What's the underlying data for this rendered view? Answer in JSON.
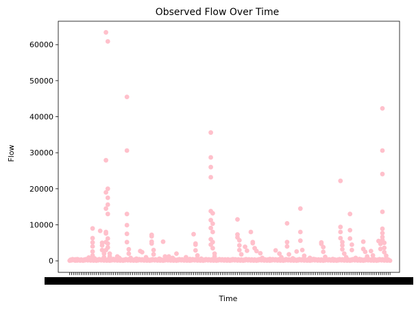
{
  "chart_data": {
    "type": "scatter",
    "title": "Observed Flow Over Time",
    "xlabel": "Time",
    "ylabel": "Flow",
    "ylim": [
      -3200,
      66500
    ],
    "yticks": [
      0,
      10000,
      20000,
      30000,
      40000,
      50000,
      60000
    ],
    "ytick_labels": [
      "0",
      "10000",
      "20000",
      "30000",
      "40000",
      "50000",
      "60000"
    ],
    "x_tick_labels_note": "",
    "grid": false,
    "legend": "none",
    "marker_color": "#ffc0cb",
    "points": [
      [
        0.5,
        150
      ],
      [
        1.5,
        300
      ],
      [
        3,
        90
      ],
      [
        4,
        450
      ],
      [
        6,
        200
      ],
      [
        8,
        350
      ],
      [
        10,
        900
      ],
      [
        12,
        9000
      ],
      [
        12,
        6300
      ],
      [
        12,
        5100
      ],
      [
        12,
        4000
      ],
      [
        12,
        2600
      ],
      [
        12,
        1500
      ],
      [
        13,
        700
      ],
      [
        16,
        8300
      ],
      [
        17,
        5000
      ],
      [
        17,
        4300
      ],
      [
        17,
        3000
      ],
      [
        18,
        2000
      ],
      [
        18,
        1000
      ],
      [
        19,
        63400
      ],
      [
        20,
        60900
      ],
      [
        19,
        27900
      ],
      [
        20,
        20000
      ],
      [
        19,
        19000
      ],
      [
        20,
        17500
      ],
      [
        20,
        15600
      ],
      [
        19,
        14500
      ],
      [
        20,
        13000
      ],
      [
        19,
        8000
      ],
      [
        19,
        7600
      ],
      [
        20,
        6200
      ],
      [
        19,
        5200
      ],
      [
        20,
        4800
      ],
      [
        20,
        3700
      ],
      [
        19,
        3000
      ],
      [
        21,
        2000
      ],
      [
        21,
        1200
      ],
      [
        23,
        500
      ],
      [
        25,
        1200
      ],
      [
        26,
        800
      ],
      [
        30,
        45500
      ],
      [
        30,
        30600
      ],
      [
        30,
        13000
      ],
      [
        30,
        9900
      ],
      [
        30,
        7500
      ],
      [
        30,
        5200
      ],
      [
        31,
        3200
      ],
      [
        31,
        2000
      ],
      [
        32,
        800
      ],
      [
        35,
        600
      ],
      [
        37,
        2700
      ],
      [
        38,
        2400
      ],
      [
        40,
        1000
      ],
      [
        43,
        7200
      ],
      [
        43,
        6800
      ],
      [
        43,
        5300
      ],
      [
        43,
        4800
      ],
      [
        44,
        3000
      ],
      [
        44,
        1800
      ],
      [
        47,
        600
      ],
      [
        49,
        5300
      ],
      [
        50,
        1200
      ],
      [
        52,
        1200
      ],
      [
        54,
        800
      ],
      [
        56,
        2000
      ],
      [
        58,
        300
      ],
      [
        61,
        1000
      ],
      [
        63,
        500
      ],
      [
        65,
        7400
      ],
      [
        66,
        4800
      ],
      [
        66,
        4500
      ],
      [
        66,
        2900
      ],
      [
        67,
        1500
      ],
      [
        69,
        600
      ],
      [
        74,
        35600
      ],
      [
        74,
        28700
      ],
      [
        74,
        26000
      ],
      [
        74,
        23200
      ],
      [
        74,
        13800
      ],
      [
        75,
        13200
      ],
      [
        74,
        11300
      ],
      [
        75,
        10300
      ],
      [
        74,
        9100
      ],
      [
        75,
        8000
      ],
      [
        74,
        6000
      ],
      [
        75,
        5200
      ],
      [
        74,
        4500
      ],
      [
        75,
        3500
      ],
      [
        76,
        2000
      ],
      [
        76,
        1200
      ],
      [
        80,
        300
      ],
      [
        83,
        400
      ],
      [
        86,
        400
      ],
      [
        88,
        11500
      ],
      [
        88,
        7300
      ],
      [
        88,
        6500
      ],
      [
        89,
        5700
      ],
      [
        89,
        4300
      ],
      [
        89,
        3000
      ],
      [
        90,
        1800
      ],
      [
        92,
        3900
      ],
      [
        93,
        2800
      ],
      [
        95,
        8000
      ],
      [
        96,
        5200
      ],
      [
        96,
        4900
      ],
      [
        97,
        3500
      ],
      [
        98,
        2700
      ],
      [
        100,
        2100
      ],
      [
        101,
        800
      ],
      [
        105,
        500
      ],
      [
        108,
        2900
      ],
      [
        110,
        2000
      ],
      [
        111,
        1000
      ],
      [
        114,
        10400
      ],
      [
        114,
        5200
      ],
      [
        114,
        4000
      ],
      [
        115,
        1800
      ],
      [
        117,
        700
      ],
      [
        119,
        2600
      ],
      [
        121,
        14500
      ],
      [
        121,
        8000
      ],
      [
        121,
        5600
      ],
      [
        122,
        3000
      ],
      [
        123,
        1400
      ],
      [
        126,
        800
      ],
      [
        128,
        500
      ],
      [
        132,
        5100
      ],
      [
        132,
        4700
      ],
      [
        133,
        3800
      ],
      [
        133,
        2500
      ],
      [
        134,
        1100
      ],
      [
        138,
        500
      ],
      [
        142,
        22200
      ],
      [
        142,
        9400
      ],
      [
        142,
        8000
      ],
      [
        142,
        6300
      ],
      [
        143,
        5200
      ],
      [
        143,
        4300
      ],
      [
        143,
        3200
      ],
      [
        144,
        2000
      ],
      [
        145,
        1000
      ],
      [
        147,
        13000
      ],
      [
        147,
        8500
      ],
      [
        147,
        6200
      ],
      [
        148,
        4500
      ],
      [
        148,
        3000
      ],
      [
        150,
        800
      ],
      [
        152,
        500
      ],
      [
        154,
        5300
      ],
      [
        154,
        3300
      ],
      [
        155,
        2500
      ],
      [
        156,
        1200
      ],
      [
        158,
        2700
      ],
      [
        159,
        1500
      ],
      [
        160,
        400
      ],
      [
        162,
        5500
      ],
      [
        163,
        4700
      ],
      [
        163,
        3300
      ],
      [
        164,
        42300
      ],
      [
        164,
        30600
      ],
      [
        164,
        24100
      ],
      [
        164,
        13600
      ],
      [
        164,
        8900
      ],
      [
        164,
        7700
      ],
      [
        164,
        6600
      ],
      [
        164,
        5800
      ],
      [
        165,
        5000
      ],
      [
        165,
        3600
      ],
      [
        165,
        2400
      ],
      [
        166,
        1400
      ],
      [
        166,
        600
      ],
      [
        167,
        200
      ]
    ]
  }
}
